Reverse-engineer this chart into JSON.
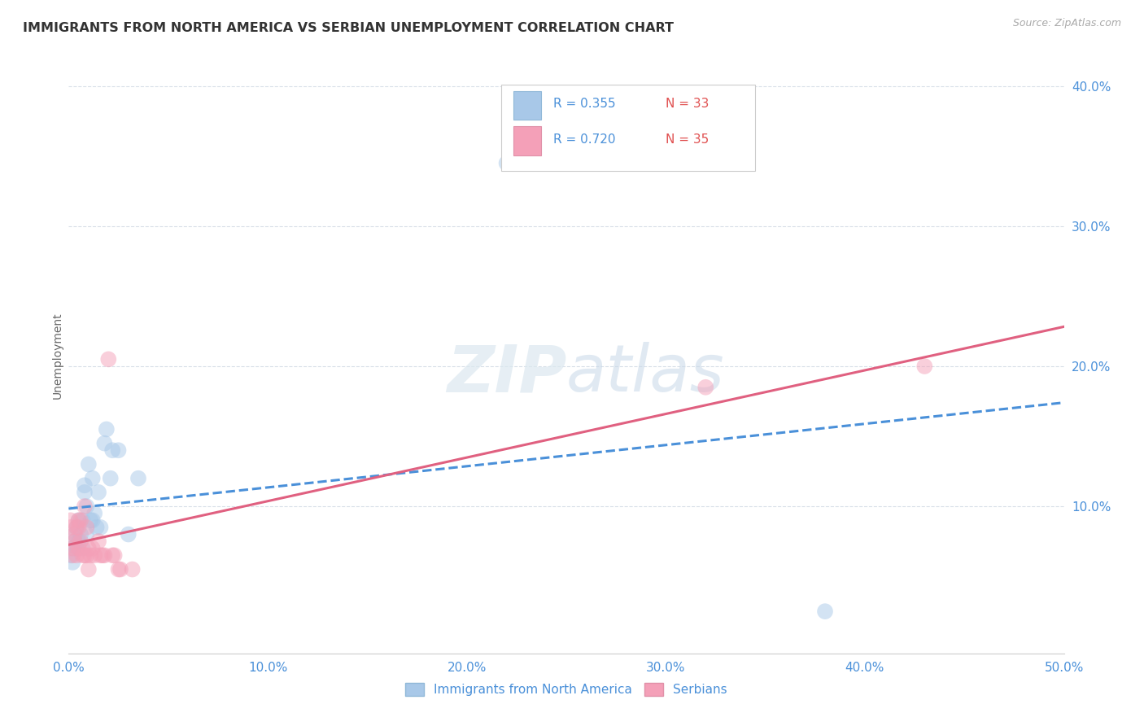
{
  "title": "IMMIGRANTS FROM NORTH AMERICA VS SERBIAN UNEMPLOYMENT CORRELATION CHART",
  "source": "Source: ZipAtlas.com",
  "ylabel": "Unemployment",
  "color_blue": "#a8c8e8",
  "color_pink": "#f4a0b8",
  "color_blue_text": "#4a90d9",
  "color_red_text": "#e05050",
  "trendline_blue_color": "#4a90d9",
  "trendline_pink_color": "#e06080",
  "background_color": "#ffffff",
  "grid_color": "#d8dfe8",
  "xlim": [
    0.0,
    0.5
  ],
  "ylim": [
    -0.005,
    0.42
  ],
  "xticks": [
    0.0,
    0.1,
    0.2,
    0.3,
    0.4,
    0.5
  ],
  "xtick_labels": [
    "0.0%",
    "10.0%",
    "20.0%",
    "30.0%",
    "40.0%",
    "50.0%"
  ],
  "yticks": [
    0.1,
    0.2,
    0.3,
    0.4
  ],
  "ytick_labels": [
    "10.0%",
    "20.0%",
    "30.0%",
    "40.0%"
  ],
  "legend_r1": "R = 0.355",
  "legend_n1": "N = 33",
  "legend_r2": "R = 0.720",
  "legend_n2": "N = 35",
  "legend_label1": "Immigrants from North America",
  "legend_label2": "Serbians",
  "blue_scatter": [
    [
      0.001,
      0.065
    ],
    [
      0.002,
      0.07
    ],
    [
      0.002,
      0.06
    ],
    [
      0.003,
      0.075
    ],
    [
      0.003,
      0.08
    ],
    [
      0.004,
      0.085
    ],
    [
      0.004,
      0.07
    ],
    [
      0.005,
      0.09
    ],
    [
      0.005,
      0.075
    ],
    [
      0.006,
      0.08
    ],
    [
      0.007,
      0.07
    ],
    [
      0.007,
      0.09
    ],
    [
      0.008,
      0.11
    ],
    [
      0.008,
      0.115
    ],
    [
      0.009,
      0.1
    ],
    [
      0.009,
      0.08
    ],
    [
      0.01,
      0.13
    ],
    [
      0.011,
      0.09
    ],
    [
      0.012,
      0.12
    ],
    [
      0.012,
      0.09
    ],
    [
      0.013,
      0.095
    ],
    [
      0.014,
      0.085
    ],
    [
      0.015,
      0.11
    ],
    [
      0.016,
      0.085
    ],
    [
      0.018,
      0.145
    ],
    [
      0.019,
      0.155
    ],
    [
      0.021,
      0.12
    ],
    [
      0.022,
      0.14
    ],
    [
      0.025,
      0.14
    ],
    [
      0.03,
      0.08
    ],
    [
      0.035,
      0.12
    ],
    [
      0.22,
      0.345
    ],
    [
      0.38,
      0.025
    ]
  ],
  "pink_scatter": [
    [
      0.001,
      0.085
    ],
    [
      0.001,
      0.09
    ],
    [
      0.002,
      0.065
    ],
    [
      0.002,
      0.07
    ],
    [
      0.003,
      0.075
    ],
    [
      0.003,
      0.08
    ],
    [
      0.004,
      0.065
    ],
    [
      0.004,
      0.085
    ],
    [
      0.005,
      0.085
    ],
    [
      0.005,
      0.09
    ],
    [
      0.005,
      0.07
    ],
    [
      0.006,
      0.09
    ],
    [
      0.006,
      0.075
    ],
    [
      0.007,
      0.065
    ],
    [
      0.008,
      0.065
    ],
    [
      0.009,
      0.065
    ],
    [
      0.01,
      0.07
    ],
    [
      0.011,
      0.065
    ],
    [
      0.012,
      0.07
    ],
    [
      0.013,
      0.065
    ],
    [
      0.015,
      0.075
    ],
    [
      0.016,
      0.065
    ],
    [
      0.017,
      0.065
    ],
    [
      0.018,
      0.065
    ],
    [
      0.02,
      0.205
    ],
    [
      0.022,
      0.065
    ],
    [
      0.023,
      0.065
    ],
    [
      0.025,
      0.055
    ],
    [
      0.026,
      0.055
    ],
    [
      0.032,
      0.055
    ],
    [
      0.32,
      0.185
    ],
    [
      0.43,
      0.2
    ],
    [
      0.008,
      0.1
    ],
    [
      0.009,
      0.085
    ],
    [
      0.01,
      0.055
    ]
  ],
  "marker_size": 200,
  "marker_alpha": 0.5
}
